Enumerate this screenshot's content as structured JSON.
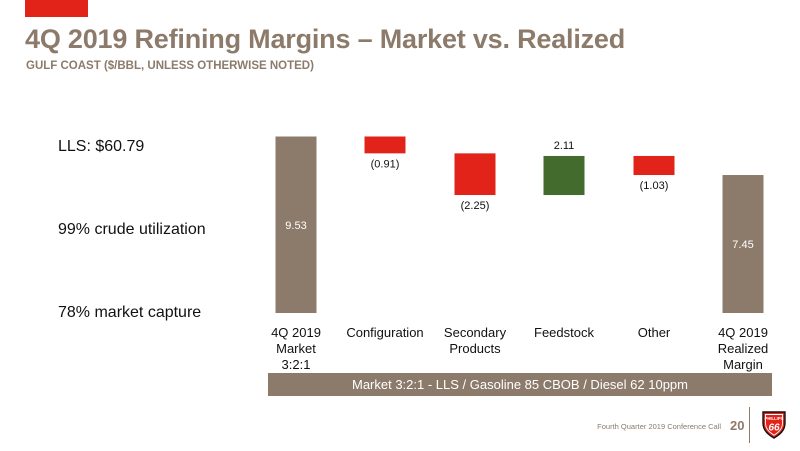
{
  "header": {
    "title": "4Q 2019 Refining Margins – Market vs. Realized",
    "subtitle": "GULF COAST ($/BBL, UNLESS OTHERWISE NOTED)"
  },
  "kpis": [
    {
      "text": "LLS: $60.79"
    },
    {
      "text": "99% crude utilization"
    },
    {
      "text": "78% market capture"
    }
  ],
  "chart_data": {
    "type": "bar",
    "subtype": "waterfall",
    "categories": [
      [
        "4Q 2019",
        "Market",
        "3:2:1"
      ],
      [
        "Configuration"
      ],
      [
        "Secondary",
        "Products"
      ],
      [
        "Feedstock"
      ],
      [
        "Other"
      ],
      [
        "4Q 2019",
        "Realized",
        "Margin"
      ]
    ],
    "bars": [
      {
        "kind": "total",
        "value": 9.53,
        "label": "9.53"
      },
      {
        "kind": "delta",
        "value": -0.91,
        "label": "(0.91)"
      },
      {
        "kind": "delta",
        "value": -2.25,
        "label": "(2.25)"
      },
      {
        "kind": "delta",
        "value": 2.11,
        "label": "2.11"
      },
      {
        "kind": "delta",
        "value": -1.03,
        "label": "(1.03)"
      },
      {
        "kind": "total",
        "value": 7.45,
        "label": "7.45"
      }
    ],
    "colors": {
      "total": "#8c7b6b",
      "negative": "#e2231a",
      "positive": "#436b2d"
    },
    "grid": false,
    "legend": "none"
  },
  "footnote": "Market 3:2:1 - LLS / Gasoline 85 CBOB / Diesel 62 10ppm",
  "footer": {
    "text": "Fourth Quarter 2019 Conference Call",
    "page": "20",
    "logo_top": "PHILLIPS",
    "logo_number": "66"
  },
  "colors": {
    "brand_red": "#e2231a",
    "brand_taupe": "#8c7b6b"
  }
}
